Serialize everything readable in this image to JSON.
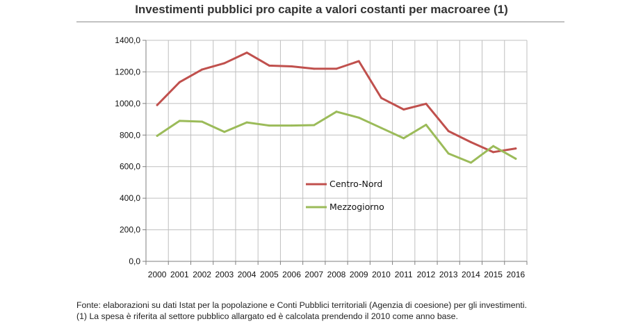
{
  "title": "Investimenti pubblici pro capite a valori costanti per macroaree (1)",
  "chart_data": {
    "type": "line",
    "title": "Investimenti pubblici pro capite a valori costanti per macroaree (1)",
    "xlabel": "",
    "ylabel": "",
    "x": [
      "2000",
      "2001",
      "2002",
      "2003",
      "2004",
      "2005",
      "2006",
      "2007",
      "2008",
      "2009",
      "2010",
      "2011",
      "2012",
      "2013",
      "2014",
      "2015",
      "2016"
    ],
    "ylim": [
      0,
      1400
    ],
    "yticks": [
      "0,0",
      "200,0",
      "400,0",
      "600,0",
      "800,0",
      "1000,0",
      "1200,0",
      "1400,0"
    ],
    "grid": true,
    "legend_position": "center",
    "series": [
      {
        "name": "Centro-Nord",
        "color": "#c0504d",
        "values": [
          990,
          1135,
          1215,
          1255,
          1322,
          1240,
          1235,
          1220,
          1220,
          1268,
          1035,
          962,
          998,
          825,
          755,
          692,
          715
        ]
      },
      {
        "name": "Mezzogiorno",
        "color": "#9bbb59",
        "values": [
          795,
          890,
          885,
          820,
          880,
          860,
          860,
          863,
          948,
          910,
          845,
          780,
          865,
          683,
          625,
          730,
          650
        ]
      }
    ]
  },
  "footer": {
    "source": "Fonte: elaborazioni su dati Istat per la popolazione e Conti Pubblici territoriali (Agenzia di coesione) per gli investimenti.",
    "note": "(1) La spesa è riferita al settore pubblico allargato ed è calcolata prendendo il 2010 come anno base."
  }
}
